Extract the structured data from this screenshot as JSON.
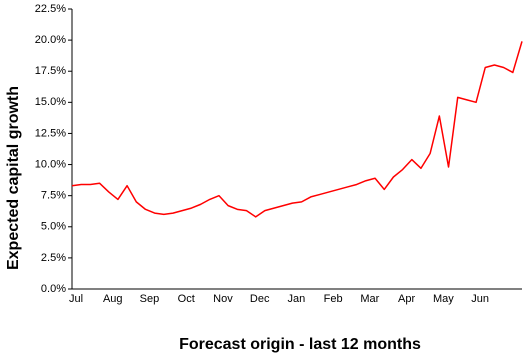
{
  "chart_data": {
    "type": "line",
    "x_label": "Forecast origin - last 12 months",
    "y_label": "Expected capital growth",
    "categories": [
      "Jul",
      null,
      null,
      null,
      "Aug",
      null,
      null,
      null,
      "Sep",
      null,
      null,
      null,
      "Oct",
      null,
      null,
      null,
      "Nov",
      null,
      null,
      null,
      "Dec",
      null,
      null,
      null,
      "Jan",
      null,
      null,
      null,
      "Feb",
      null,
      null,
      null,
      "Mar",
      null,
      null,
      null,
      "Apr",
      null,
      null,
      null,
      "May",
      null,
      null,
      null,
      "Jun",
      null,
      null,
      null,
      null,
      null
    ],
    "series": [
      {
        "name": "Expected capital growth",
        "color": "#ff0000",
        "values": [
          8.3,
          8.4,
          8.4,
          8.5,
          7.8,
          7.2,
          8.3,
          7.0,
          6.4,
          6.1,
          6.0,
          6.1,
          6.3,
          6.5,
          6.8,
          7.2,
          7.5,
          6.7,
          6.4,
          6.3,
          5.8,
          6.3,
          6.5,
          6.7,
          6.9,
          7.0,
          7.4,
          7.6,
          7.8,
          8.0,
          8.2,
          8.4,
          8.7,
          8.9,
          8.0,
          9.0,
          9.6,
          10.4,
          9.7,
          10.9,
          13.9,
          9.8,
          15.4,
          15.2,
          15.0,
          17.8,
          18.0,
          17.8,
          17.4,
          19.9
        ]
      }
    ],
    "ylim": [
      0,
      22.5
    ],
    "yticks": [
      {
        "value": 0,
        "label": "0.0%"
      },
      {
        "value": 2.5,
        "label": "2.5%"
      },
      {
        "value": 5,
        "label": "5.0%"
      },
      {
        "value": 7.5,
        "label": "7.5%"
      },
      {
        "value": 10,
        "label": "10.0%"
      },
      {
        "value": 12.5,
        "label": "12.5%"
      },
      {
        "value": 15,
        "label": "15.0%"
      },
      {
        "value": 17.5,
        "label": "17.5%"
      },
      {
        "value": 20,
        "label": "20.0%"
      },
      {
        "value": 22.5,
        "label": "22.5%"
      }
    ],
    "grid": false
  }
}
